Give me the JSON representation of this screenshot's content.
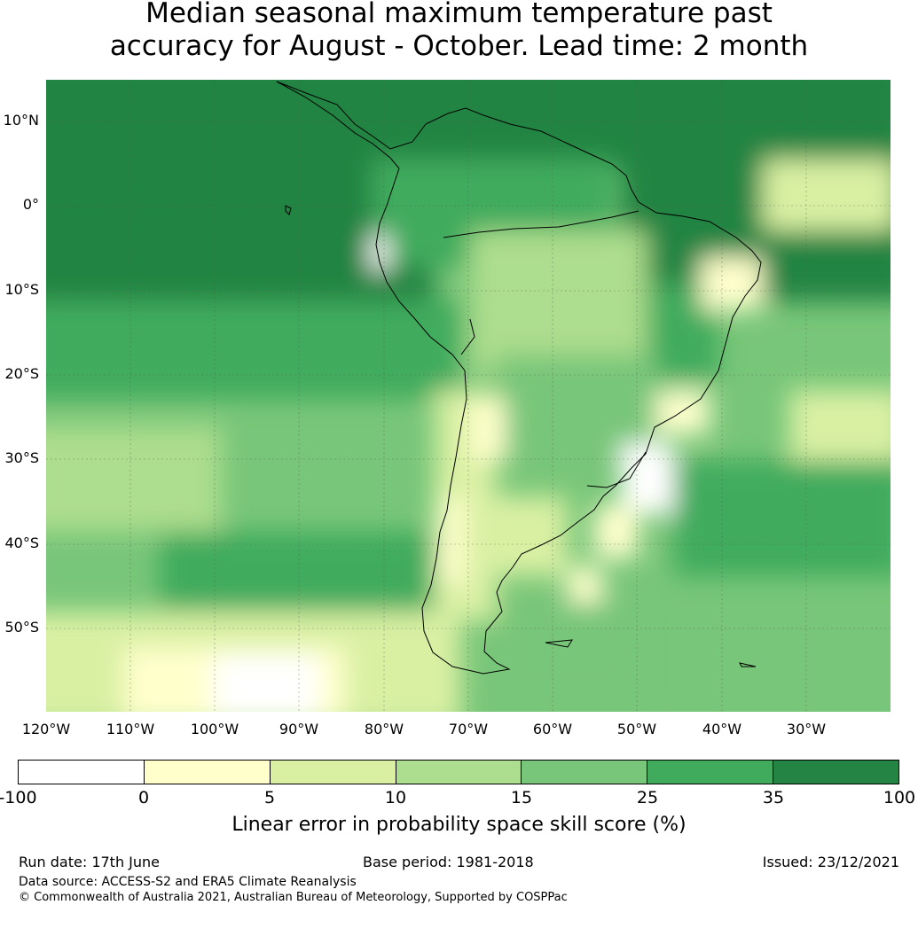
{
  "title": {
    "line1": "Median seasonal maximum temperature past",
    "line2": "accuracy for August - October. Lead time: 2 month"
  },
  "map": {
    "region": "South America",
    "lat_labels": [
      "10°N",
      "0°",
      "10°S",
      "20°S",
      "30°S",
      "40°S",
      "50°S"
    ],
    "lon_labels": [
      "120°W",
      "110°W",
      "100°W",
      "90°W",
      "80°W",
      "70°W",
      "60°W",
      "50°W",
      "40°W",
      "30°W"
    ],
    "gridlines": true
  },
  "colorbar": {
    "ticks": [
      "-100",
      "0",
      "5",
      "10",
      "15",
      "25",
      "35",
      "100"
    ],
    "colors": [
      "#ffffff",
      "#ffffcc",
      "#d9f0a3",
      "#addd8e",
      "#78c679",
      "#41ab5d",
      "#238443"
    ],
    "label": "Linear error in probability space skill score (%)"
  },
  "footer": {
    "run_date": "Run date: 17th June",
    "base_period": "Base period: 1981-2018",
    "issued": "Issued: 23/12/2021",
    "data_source": "Data source: ACCESS-S2 and ERA5 Climate Reanalysis",
    "copyright": "© Commonwealth of Australia 2021, Australian Bureau of Meteorology, Supported by COSPPac"
  }
}
